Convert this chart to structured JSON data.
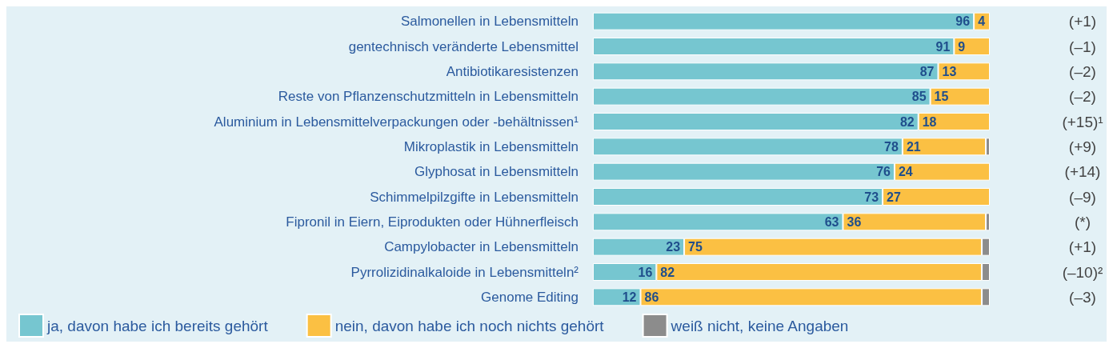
{
  "chart_data": {
    "type": "bar",
    "orientation": "horizontal",
    "stacked": true,
    "legend": "bottom",
    "xlim": [
      0,
      100
    ],
    "categories": [
      "Salmonellen in Lebensmitteln",
      "gentechnisch veränderte Lebensmittel",
      "Antibiotikaresistenzen",
      "Reste von Pflanzenschutzmitteln in Lebensmitteln",
      "Aluminium in Lebensmittelverpackungen oder -behältnissen¹",
      "Mikroplastik in Lebensmitteln",
      "Glyphosat in Lebensmitteln",
      "Schimmelpilzgifte in Lebensmitteln",
      "Fipronil in Eiern, Eiprodukten oder Hühnerfleisch",
      "Campylobacter in Lebensmitteln",
      "Pyrrolizidinalkaloide in Lebensmitteln²",
      "Genome Editing"
    ],
    "series": [
      {
        "name": "ja, davon habe ich bereits gehört",
        "color": "#76c6d0",
        "values": [
          96,
          91,
          87,
          85,
          82,
          78,
          76,
          73,
          63,
          23,
          16,
          12
        ],
        "value_labels": [
          "96",
          "91",
          "87",
          "85",
          "82",
          "78",
          "76",
          "73",
          "63",
          "23",
          "16",
          "12"
        ]
      },
      {
        "name": "nein, davon habe ich noch nichts gehört",
        "color": "#fbc043",
        "values": [
          4,
          9,
          13,
          15,
          18,
          21,
          24,
          27,
          36,
          75,
          82,
          86
        ],
        "value_labels": [
          "4",
          "9",
          "13",
          "15",
          "18",
          "21",
          "24",
          "27",
          "36",
          "75",
          "82",
          "86"
        ]
      },
      {
        "name": "weiß nicht, keine Angaben",
        "color": "#8c8c8c",
        "values": [
          0,
          0,
          0,
          0,
          0,
          1,
          0,
          0,
          1,
          2,
          2,
          2
        ]
      }
    ],
    "annotations": [
      "(+1)",
      "(–1)",
      "(–2)",
      "(–2)",
      "(+15)¹",
      "(+9)",
      "(+14)",
      "(–9)",
      "(*)",
      "(+1)",
      "(–10)²",
      "(–3)"
    ]
  }
}
